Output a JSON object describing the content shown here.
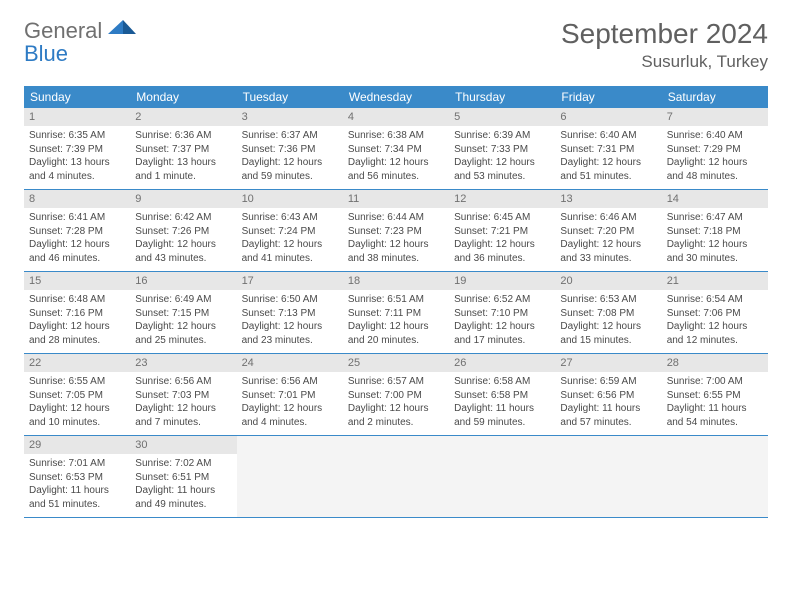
{
  "logo": {
    "line1": "General",
    "line2": "Blue"
  },
  "title": "September 2024",
  "location": "Susurluk, Turkey",
  "colors": {
    "header_bg": "#3a8ac9",
    "header_text": "#ffffff",
    "daynum_bg": "#e7e7e7",
    "daynum_text": "#707070",
    "body_text": "#4a4a4a",
    "title_text": "#606060",
    "logo_gray": "#707070",
    "logo_blue": "#2e7bc4",
    "border": "#3a8ac9",
    "empty_bg": "#f4f4f4"
  },
  "weekdays": [
    "Sunday",
    "Monday",
    "Tuesday",
    "Wednesday",
    "Thursday",
    "Friday",
    "Saturday"
  ],
  "weeks": [
    [
      {
        "day": "1",
        "sunrise": "6:35 AM",
        "sunset": "7:39 PM",
        "daylight": "13 hours and 4 minutes."
      },
      {
        "day": "2",
        "sunrise": "6:36 AM",
        "sunset": "7:37 PM",
        "daylight": "13 hours and 1 minute."
      },
      {
        "day": "3",
        "sunrise": "6:37 AM",
        "sunset": "7:36 PM",
        "daylight": "12 hours and 59 minutes."
      },
      {
        "day": "4",
        "sunrise": "6:38 AM",
        "sunset": "7:34 PM",
        "daylight": "12 hours and 56 minutes."
      },
      {
        "day": "5",
        "sunrise": "6:39 AM",
        "sunset": "7:33 PM",
        "daylight": "12 hours and 53 minutes."
      },
      {
        "day": "6",
        "sunrise": "6:40 AM",
        "sunset": "7:31 PM",
        "daylight": "12 hours and 51 minutes."
      },
      {
        "day": "7",
        "sunrise": "6:40 AM",
        "sunset": "7:29 PM",
        "daylight": "12 hours and 48 minutes."
      }
    ],
    [
      {
        "day": "8",
        "sunrise": "6:41 AM",
        "sunset": "7:28 PM",
        "daylight": "12 hours and 46 minutes."
      },
      {
        "day": "9",
        "sunrise": "6:42 AM",
        "sunset": "7:26 PM",
        "daylight": "12 hours and 43 minutes."
      },
      {
        "day": "10",
        "sunrise": "6:43 AM",
        "sunset": "7:24 PM",
        "daylight": "12 hours and 41 minutes."
      },
      {
        "day": "11",
        "sunrise": "6:44 AM",
        "sunset": "7:23 PM",
        "daylight": "12 hours and 38 minutes."
      },
      {
        "day": "12",
        "sunrise": "6:45 AM",
        "sunset": "7:21 PM",
        "daylight": "12 hours and 36 minutes."
      },
      {
        "day": "13",
        "sunrise": "6:46 AM",
        "sunset": "7:20 PM",
        "daylight": "12 hours and 33 minutes."
      },
      {
        "day": "14",
        "sunrise": "6:47 AM",
        "sunset": "7:18 PM",
        "daylight": "12 hours and 30 minutes."
      }
    ],
    [
      {
        "day": "15",
        "sunrise": "6:48 AM",
        "sunset": "7:16 PM",
        "daylight": "12 hours and 28 minutes."
      },
      {
        "day": "16",
        "sunrise": "6:49 AM",
        "sunset": "7:15 PM",
        "daylight": "12 hours and 25 minutes."
      },
      {
        "day": "17",
        "sunrise": "6:50 AM",
        "sunset": "7:13 PM",
        "daylight": "12 hours and 23 minutes."
      },
      {
        "day": "18",
        "sunrise": "6:51 AM",
        "sunset": "7:11 PM",
        "daylight": "12 hours and 20 minutes."
      },
      {
        "day": "19",
        "sunrise": "6:52 AM",
        "sunset": "7:10 PM",
        "daylight": "12 hours and 17 minutes."
      },
      {
        "day": "20",
        "sunrise": "6:53 AM",
        "sunset": "7:08 PM",
        "daylight": "12 hours and 15 minutes."
      },
      {
        "day": "21",
        "sunrise": "6:54 AM",
        "sunset": "7:06 PM",
        "daylight": "12 hours and 12 minutes."
      }
    ],
    [
      {
        "day": "22",
        "sunrise": "6:55 AM",
        "sunset": "7:05 PM",
        "daylight": "12 hours and 10 minutes."
      },
      {
        "day": "23",
        "sunrise": "6:56 AM",
        "sunset": "7:03 PM",
        "daylight": "12 hours and 7 minutes."
      },
      {
        "day": "24",
        "sunrise": "6:56 AM",
        "sunset": "7:01 PM",
        "daylight": "12 hours and 4 minutes."
      },
      {
        "day": "25",
        "sunrise": "6:57 AM",
        "sunset": "7:00 PM",
        "daylight": "12 hours and 2 minutes."
      },
      {
        "day": "26",
        "sunrise": "6:58 AM",
        "sunset": "6:58 PM",
        "daylight": "11 hours and 59 minutes."
      },
      {
        "day": "27",
        "sunrise": "6:59 AM",
        "sunset": "6:56 PM",
        "daylight": "11 hours and 57 minutes."
      },
      {
        "day": "28",
        "sunrise": "7:00 AM",
        "sunset": "6:55 PM",
        "daylight": "11 hours and 54 minutes."
      }
    ],
    [
      {
        "day": "29",
        "sunrise": "7:01 AM",
        "sunset": "6:53 PM",
        "daylight": "11 hours and 51 minutes."
      },
      {
        "day": "30",
        "sunrise": "7:02 AM",
        "sunset": "6:51 PM",
        "daylight": "11 hours and 49 minutes."
      },
      null,
      null,
      null,
      null,
      null
    ]
  ],
  "labels": {
    "sunrise": "Sunrise:",
    "sunset": "Sunset:",
    "daylight": "Daylight:"
  }
}
